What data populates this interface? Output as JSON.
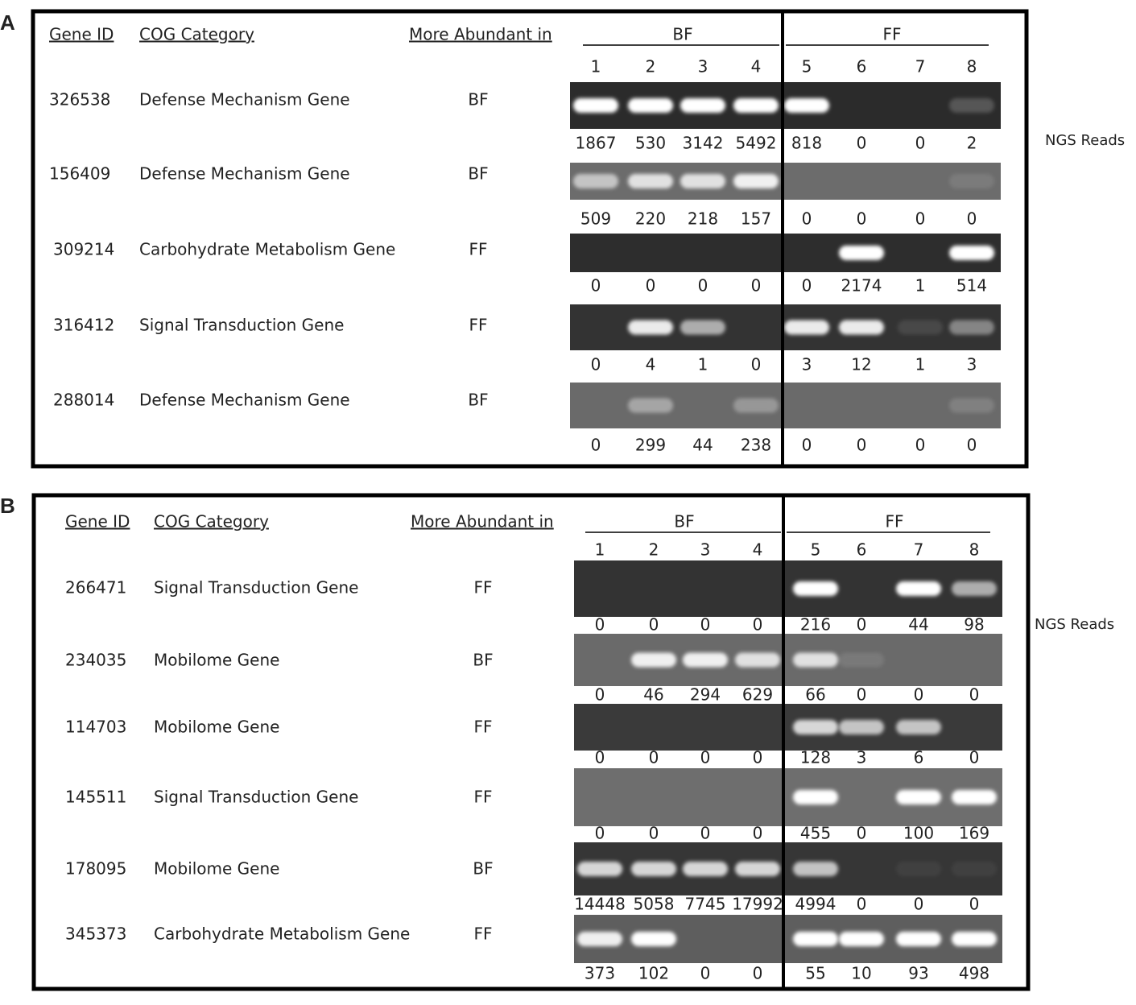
{
  "panels": [
    {
      "label": "A",
      "headers": {
        "gene_id": "Gene ID",
        "cog": "COG Category",
        "abundant": "More Abundant in",
        "bf": "BF",
        "ff": "FF"
      },
      "lanes": [
        1,
        2,
        3,
        4,
        5,
        6,
        7,
        8
      ],
      "reads_label": "NGS Reads",
      "rows": [
        {
          "gene_id": "326538",
          "category": "Defense Mechanism Gene",
          "abundant": "BF",
          "reads": [
            1867,
            530,
            3142,
            5492,
            818,
            0,
            0,
            2
          ]
        },
        {
          "gene_id": "156409",
          "category": "Defense Mechanism Gene",
          "abundant": "BF",
          "reads": [
            509,
            220,
            218,
            157,
            0,
            0,
            0,
            0
          ]
        },
        {
          "gene_id": "309214",
          "category": "Carbohydrate Metabolism Gene",
          "abundant": "FF",
          "reads": [
            0,
            0,
            0,
            0,
            0,
            2174,
            1,
            514
          ]
        },
        {
          "gene_id": "316412",
          "category": "Signal Transduction Gene",
          "abundant": "FF",
          "reads": [
            0,
            4,
            1,
            0,
            3,
            12,
            1,
            3
          ]
        },
        {
          "gene_id": "288014",
          "category": "Defense Mechanism Gene",
          "abundant": "BF",
          "reads": [
            0,
            299,
            44,
            238,
            0,
            0,
            0,
            0
          ]
        }
      ]
    },
    {
      "label": "B",
      "headers": {
        "gene_id": "Gene ID",
        "cog": "COG Category",
        "abundant": "More Abundant in",
        "bf": "BF",
        "ff": "FF"
      },
      "lanes": [
        1,
        2,
        3,
        4,
        5,
        6,
        7,
        8
      ],
      "reads_label": "NGS Reads",
      "rows": [
        {
          "gene_id": "266471",
          "category": "Signal Transduction Gene",
          "abundant": "FF",
          "reads": [
            0,
            0,
            0,
            0,
            216,
            0,
            44,
            98
          ]
        },
        {
          "gene_id": "234035",
          "category": "Mobilome Gene",
          "abundant": "BF",
          "reads": [
            0,
            46,
            294,
            629,
            66,
            0,
            0,
            0
          ]
        },
        {
          "gene_id": "114703",
          "category": "Mobilome Gene",
          "abundant": "FF",
          "reads": [
            0,
            0,
            0,
            0,
            128,
            3,
            6,
            0
          ]
        },
        {
          "gene_id": "145511",
          "category": "Signal Transduction Gene",
          "abundant": "FF",
          "reads": [
            0,
            0,
            0,
            0,
            455,
            0,
            100,
            169
          ]
        },
        {
          "gene_id": "178095",
          "category": "Mobilome Gene",
          "abundant": "BF",
          "reads": [
            14448,
            5058,
            7745,
            17992,
            4994,
            0,
            0,
            0
          ]
        },
        {
          "gene_id": "345373",
          "category": "Carbohydrate Metabolism Gene",
          "abundant": "FF",
          "reads": [
            373,
            102,
            0,
            0,
            55,
            10,
            93,
            498
          ]
        }
      ]
    }
  ]
}
